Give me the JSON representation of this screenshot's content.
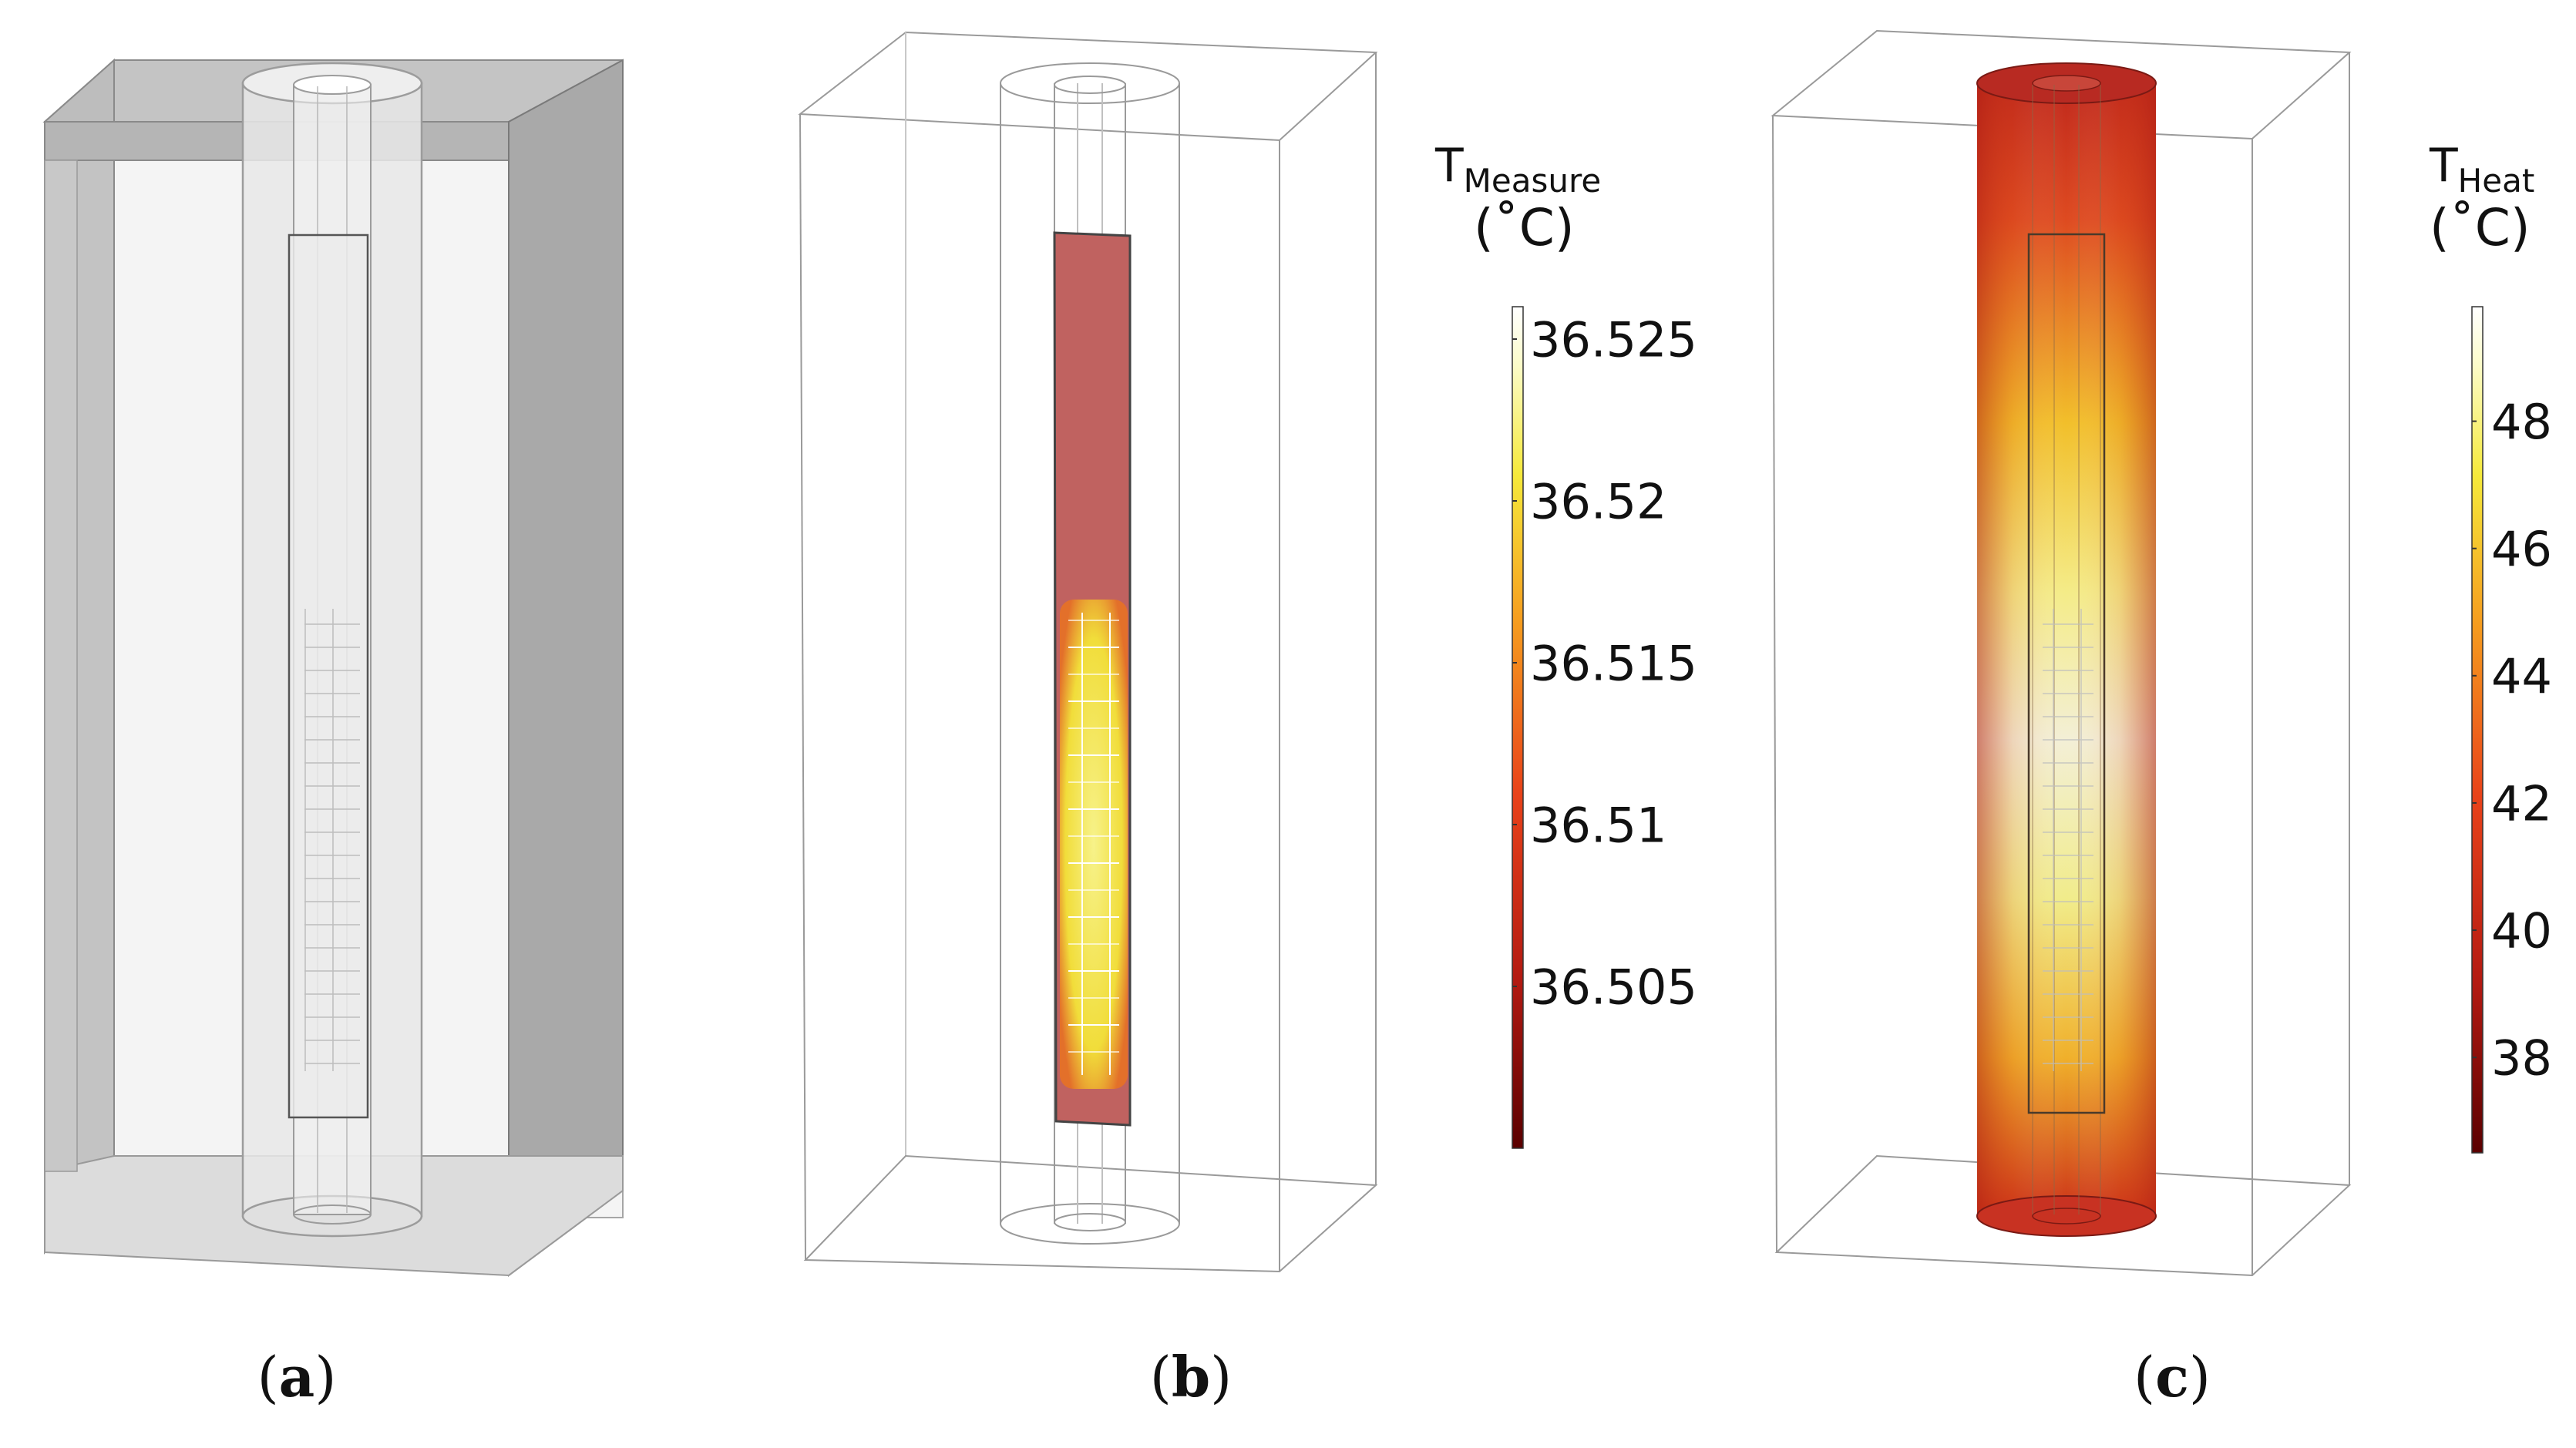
{
  "panels": [
    {
      "id": "a",
      "label_open": "(",
      "label": "a",
      "label_close": ")"
    },
    {
      "id": "b",
      "label_open": "(",
      "label": "b",
      "label_close": ")"
    },
    {
      "id": "c",
      "label_open": "(",
      "label": "c",
      "label_close": ")"
    }
  ],
  "colorbar_measure": {
    "symbol": "T",
    "subscript": "Measure",
    "unit": "(˚C)",
    "ticks": [
      "36.525",
      "36.52",
      "36.515",
      "36.51",
      "36.505"
    ],
    "tick_values": [
      36.525,
      36.52,
      36.515,
      36.51,
      36.505
    ],
    "range": [
      36.5,
      36.526
    ]
  },
  "colorbar_heat": {
    "symbol": "T",
    "subscript": "Heat",
    "unit": "(˚C)",
    "ticks": [
      "48",
      "46",
      "44",
      "42",
      "40",
      "38"
    ],
    "tick_values": [
      48,
      46,
      44,
      42,
      40,
      38
    ],
    "range": [
      36.5,
      49.8
    ]
  },
  "colors": {
    "colormap": [
      "#5a0000",
      "#b31a12",
      "#e8421a",
      "#f59a1e",
      "#f5e93a",
      "#fbfbc8",
      "#ffffff"
    ],
    "outline": "#888888",
    "box_gray": "#c8c8c8"
  }
}
